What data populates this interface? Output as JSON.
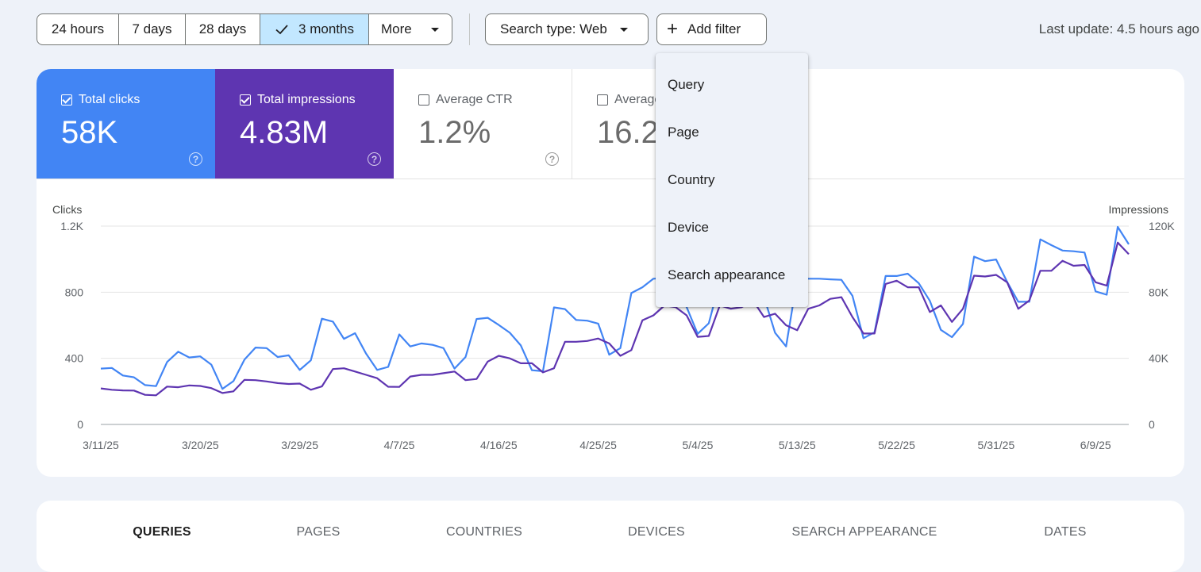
{
  "toolbar": {
    "date_ranges": [
      "24 hours",
      "7 days",
      "28 days",
      "3 months",
      "More"
    ],
    "selected_range": "3 months",
    "search_type": "Search type: Web",
    "add_filter": "Add filter",
    "last_update": "Last update: 4.5 hours ago"
  },
  "metrics": {
    "clicks": {
      "label": "Total clicks",
      "value": "58K",
      "checked": true,
      "color": "#4285f4"
    },
    "impressions": {
      "label": "Total impressions",
      "value": "4.83M",
      "checked": true,
      "color": "#5e35b1"
    },
    "ctr": {
      "label": "Average CTR",
      "value": "1.2%",
      "checked": false
    },
    "position": {
      "label": "Average position",
      "value": "16.2",
      "checked": false
    }
  },
  "filter_menu": [
    "Query",
    "Page",
    "Country",
    "Device",
    "Search appearance"
  ],
  "tabs": [
    "QUERIES",
    "PAGES",
    "COUNTRIES",
    "DEVICES",
    "SEARCH APPEARANCE",
    "DATES"
  ],
  "chart_data": {
    "type": "line",
    "ylabel_left": "Clicks",
    "ylabel_right": "Impressions",
    "yticks_left": [
      "0",
      "400",
      "800",
      "1.2K"
    ],
    "yticks_right": [
      "0",
      "40K",
      "80K",
      "120K"
    ],
    "ylim_left": [
      0,
      1200
    ],
    "ylim_right": [
      0,
      120000
    ],
    "xticks": [
      "3/11/25",
      "3/20/25",
      "3/29/25",
      "4/7/25",
      "4/16/25",
      "4/25/25",
      "5/4/25",
      "5/13/25",
      "5/22/25",
      "5/31/25",
      "6/9/25"
    ],
    "x_start": "2025-03-11",
    "series": [
      {
        "name": "Clicks",
        "axis": "left",
        "color": "#4285f4",
        "values": [
          338,
          342,
          296,
          285,
          238,
          232,
          378,
          440,
          405,
          412,
          362,
          215,
          262,
          392,
          465,
          462,
          408,
          418,
          330,
          388,
          640,
          622,
          518,
          552,
          428,
          330,
          348,
          545,
          472,
          490,
          482,
          462,
          338,
          408,
          638,
          645,
          602,
          555,
          478,
          328,
          322,
          708,
          698,
          632,
          628,
          610,
          422,
          462,
          795,
          830,
          882,
          885,
          842,
          710,
          548,
          612,
          862,
          855,
          800,
          795,
          772,
          555,
          472,
          882,
          882,
          882,
          878,
          875,
          778,
          522,
          558,
          898,
          898,
          912,
          855,
          748,
          572,
          528,
          608,
          1015,
          988,
          998,
          862,
          742,
          742,
          1120,
          1085,
          1052,
          1048,
          1040,
          805,
          785,
          1195,
          1090
        ]
      },
      {
        "name": "Impressions",
        "axis": "right",
        "color": "#5e35b1",
        "values": [
          21800,
          21000,
          20600,
          20500,
          17900,
          17600,
          22900,
          22500,
          23600,
          23300,
          22000,
          19000,
          20000,
          27000,
          26800,
          26000,
          25000,
          24500,
          24700,
          21000,
          23000,
          33500,
          34000,
          32000,
          30000,
          28000,
          22800,
          22700,
          29000,
          30000,
          30000,
          31000,
          32000,
          26800,
          27500,
          38000,
          41500,
          40000,
          37000,
          37000,
          31500,
          34000,
          50000,
          50000,
          50500,
          52000,
          49000,
          41500,
          45000,
          63000,
          66000,
          72000,
          71000,
          66000,
          53000,
          53500,
          72000,
          70000,
          71000,
          75000,
          65000,
          67000,
          60000,
          57000,
          70000,
          72000,
          76000,
          77000,
          65000,
          55000,
          55000,
          85000,
          87000,
          83000,
          83000,
          68000,
          72000,
          62000,
          70000,
          90000,
          89500,
          90500,
          86000,
          70000,
          75000,
          93000,
          93000,
          99000,
          96000,
          96500,
          86000,
          84000,
          110000,
          103000
        ]
      }
    ]
  }
}
